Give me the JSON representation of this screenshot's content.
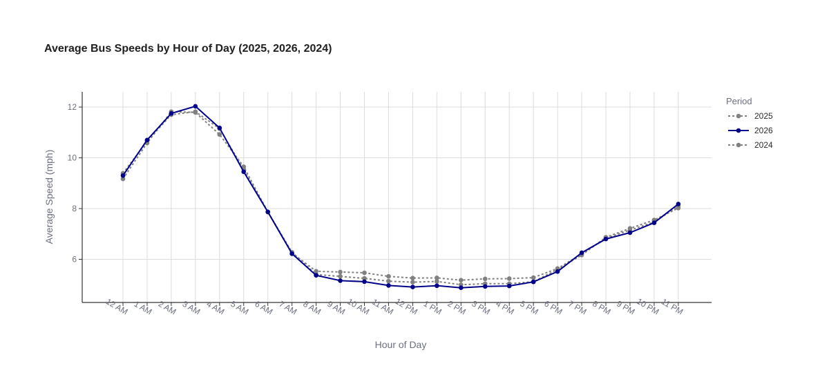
{
  "chart_data": {
    "type": "line",
    "title": "Average Bus Speeds by Hour of Day (2025, 2026, 2024)",
    "xlabel": "Hour of Day",
    "ylabel": "Average Speed (mph)",
    "categories": [
      "12 AM",
      "1 AM",
      "2 AM",
      "3 AM",
      "4 AM",
      "5 AM",
      "6 AM",
      "7 AM",
      "8 AM",
      "9 AM",
      "10 AM",
      "11 AM",
      "12 PM",
      "1 PM",
      "2 PM",
      "3 PM",
      "4 PM",
      "5 PM",
      "6 PM",
      "7 PM",
      "8 PM",
      "9 PM",
      "10 PM",
      "11 PM"
    ],
    "ylim": [
      4.3,
      12.6
    ],
    "yticks": [
      6,
      8,
      10,
      12
    ],
    "grid": true,
    "legend": {
      "title": "Period",
      "placement": "right"
    },
    "series": [
      {
        "name": "2025",
        "color": "#808080",
        "dash": "dotted",
        "values": [
          9.17,
          10.58,
          11.82,
          11.79,
          10.92,
          9.65,
          7.87,
          6.28,
          5.4,
          5.33,
          5.25,
          5.14,
          5.1,
          5.13,
          5.0,
          5.04,
          5.04,
          5.12,
          5.6,
          6.17,
          6.87,
          7.22,
          7.55,
          8.02
        ]
      },
      {
        "name": "2026",
        "color": "#00008b",
        "dash": "solid",
        "values": [
          9.3,
          10.7,
          11.75,
          12.03,
          11.18,
          9.45,
          7.87,
          6.22,
          5.37,
          5.16,
          5.12,
          4.97,
          4.91,
          4.96,
          4.88,
          4.93,
          4.95,
          5.11,
          5.52,
          6.26,
          6.8,
          7.05,
          7.44,
          8.18
        ]
      },
      {
        "name": "2024",
        "color": "#808080",
        "dash": "dotted",
        "values": [
          9.39,
          10.65,
          11.7,
          11.82,
          11.15,
          9.55,
          7.86,
          6.25,
          5.53,
          5.5,
          5.47,
          5.33,
          5.26,
          5.27,
          5.18,
          5.23,
          5.24,
          5.28,
          5.64,
          6.21,
          6.84,
          7.15,
          7.47,
          8.1
        ]
      }
    ]
  }
}
